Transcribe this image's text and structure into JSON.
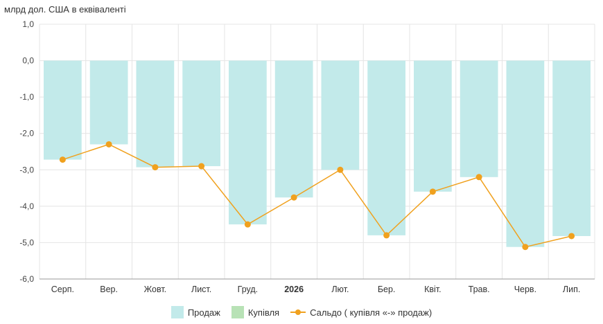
{
  "unit_label": "млрд дол. США в еквіваленті",
  "colors": {
    "sales": "#c2eaea",
    "purchase": "#b8e2b6",
    "balance": "#f0a11e",
    "grid": "#e4e4e4",
    "axis": "#9a9a9a"
  },
  "legend": [
    {
      "label": "Продаж",
      "kind": "bar",
      "color": "#c2eaea"
    },
    {
      "label": "Купівля",
      "kind": "bar",
      "color": "#b8e2b6"
    },
    {
      "label": "Сальдо ( купівля «-» продаж)",
      "kind": "line",
      "color": "#f0a11e"
    }
  ],
  "chart_data": {
    "type": "bar",
    "categories": [
      "Серп.",
      "Вер.",
      "Жовт.",
      "Лист.",
      "Груд.",
      "2026",
      "Лют.",
      "Бер.",
      "Квіт.",
      "Трав.",
      "Черв.",
      "Лип."
    ],
    "bold_categories": [
      "2026"
    ],
    "ylim": [
      -6,
      1
    ],
    "yticks": [
      "1,0",
      "0,0",
      "-1,0",
      "-2,0",
      "-3,0",
      "-4,0",
      "-5,0",
      "-6,0"
    ],
    "ytick_values": [
      1,
      0,
      -1,
      -2,
      -3,
      -4,
      -5,
      -6
    ],
    "grid": true,
    "series": [
      {
        "name": "Продаж",
        "type": "bar",
        "values": [
          -2.72,
          -2.3,
          -2.93,
          -2.9,
          -4.5,
          -3.76,
          -3.0,
          -4.8,
          -3.6,
          -3.2,
          -5.12,
          -4.82
        ]
      },
      {
        "name": "Купівля",
        "type": "bar",
        "values": [
          0,
          0,
          0,
          0,
          0,
          0,
          0,
          0,
          0,
          0,
          0,
          0
        ]
      },
      {
        "name": "Сальдо ( купівля «-» продаж)",
        "type": "line",
        "values": [
          -2.72,
          -2.3,
          -2.93,
          -2.9,
          -4.5,
          -3.76,
          -3.0,
          -4.8,
          -3.6,
          -3.2,
          -5.12,
          -4.82
        ]
      }
    ]
  }
}
